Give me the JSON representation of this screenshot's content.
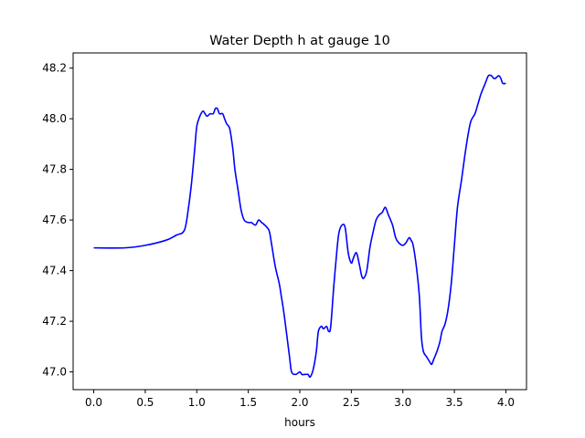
{
  "chart_data": {
    "type": "line",
    "title": "Water Depth h at gauge 10",
    "xlabel": "hours",
    "ylabel": "",
    "xlim": [
      -0.2,
      4.2
    ],
    "ylim": [
      46.93,
      48.26
    ],
    "xticks": [
      0.0,
      0.5,
      1.0,
      1.5,
      2.0,
      2.5,
      3.0,
      3.5,
      4.0
    ],
    "xtick_labels": [
      "0.0",
      "0.5",
      "1.0",
      "1.5",
      "2.0",
      "2.5",
      "3.0",
      "3.5",
      "4.0"
    ],
    "yticks": [
      47.0,
      47.2,
      47.4,
      47.6,
      47.8,
      48.0,
      48.2
    ],
    "ytick_labels": [
      "47.0",
      "47.2",
      "47.4",
      "47.6",
      "47.8",
      "48.0",
      "48.2"
    ],
    "grid": false,
    "series": [
      {
        "color": "#0000ff",
        "x": [
          0.0,
          0.3,
          0.5,
          0.7,
          0.8,
          0.88,
          0.92,
          0.95,
          0.98,
          1.0,
          1.03,
          1.06,
          1.08,
          1.1,
          1.13,
          1.16,
          1.18,
          1.2,
          1.22,
          1.25,
          1.27,
          1.29,
          1.32,
          1.35,
          1.37,
          1.4,
          1.43,
          1.46,
          1.5,
          1.53,
          1.57,
          1.6,
          1.63,
          1.66,
          1.7,
          1.72,
          1.76,
          1.8,
          1.82,
          1.85,
          1.9,
          1.92,
          1.96,
          2.0,
          2.02,
          2.05,
          2.08,
          2.1,
          2.13,
          2.16,
          2.18,
          2.21,
          2.23,
          2.26,
          2.28,
          2.3,
          2.33,
          2.36,
          2.38,
          2.41,
          2.44,
          2.47,
          2.5,
          2.52,
          2.55,
          2.58,
          2.6,
          2.62,
          2.65,
          2.68,
          2.71,
          2.74,
          2.77,
          2.8,
          2.83,
          2.86,
          2.9,
          2.93,
          2.96,
          3.0,
          3.03,
          3.06,
          3.08,
          3.1,
          3.13,
          3.16,
          3.18,
          3.2,
          3.23,
          3.26,
          3.28,
          3.3,
          3.33,
          3.36,
          3.38,
          3.41,
          3.44,
          3.47,
          3.5,
          3.53,
          3.57,
          3.6,
          3.63,
          3.66,
          3.7,
          3.73,
          3.76,
          3.8,
          3.83,
          3.86,
          3.88,
          3.9,
          3.93,
          3.95,
          3.97,
          4.0
        ],
        "y": [
          47.49,
          47.49,
          47.5,
          47.52,
          47.54,
          47.56,
          47.65,
          47.75,
          47.88,
          47.97,
          48.01,
          48.03,
          48.02,
          48.01,
          48.02,
          48.02,
          48.04,
          48.04,
          48.02,
          48.02,
          48.0,
          47.98,
          47.96,
          47.88,
          47.8,
          47.72,
          47.64,
          47.6,
          47.59,
          47.59,
          47.58,
          47.6,
          47.59,
          47.58,
          47.56,
          47.52,
          47.42,
          47.35,
          47.3,
          47.22,
          47.06,
          47.0,
          46.99,
          47.0,
          46.99,
          46.99,
          46.99,
          46.98,
          47.01,
          47.08,
          47.16,
          47.18,
          47.17,
          47.18,
          47.16,
          47.18,
          47.34,
          47.48,
          47.55,
          47.58,
          47.57,
          47.47,
          47.43,
          47.45,
          47.47,
          47.42,
          47.38,
          47.37,
          47.4,
          47.49,
          47.55,
          47.6,
          47.62,
          47.63,
          47.65,
          47.62,
          47.58,
          47.53,
          47.51,
          47.5,
          47.51,
          47.53,
          47.52,
          47.5,
          47.42,
          47.3,
          47.14,
          47.08,
          47.06,
          47.04,
          47.03,
          47.05,
          47.08,
          47.12,
          47.16,
          47.19,
          47.25,
          47.35,
          47.5,
          47.65,
          47.76,
          47.85,
          47.93,
          47.99,
          48.02,
          48.06,
          48.1,
          48.14,
          48.17,
          48.17,
          48.16,
          48.16,
          48.17,
          48.16,
          48.14,
          48.14
        ]
      }
    ]
  }
}
